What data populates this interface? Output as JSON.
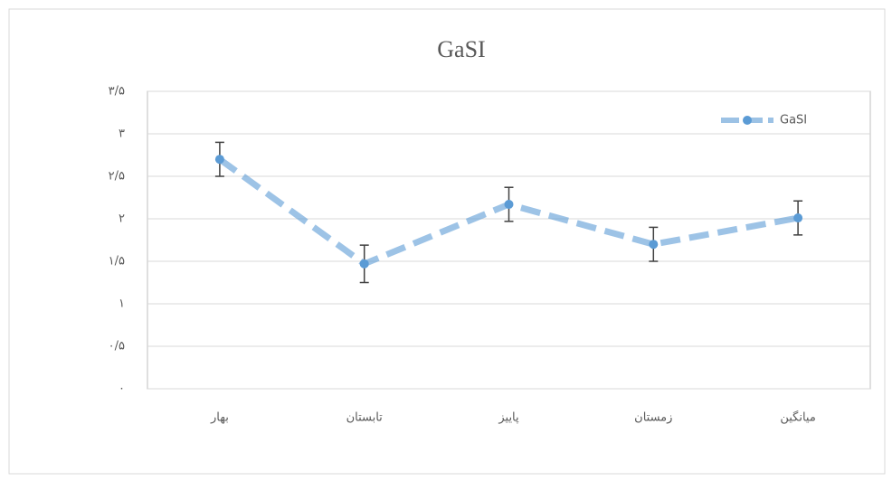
{
  "chart_data": {
    "type": "line",
    "title": "GaSI",
    "categories": [
      "بهار",
      "تابستان",
      "پاییز",
      "زمستان",
      "میانگین"
    ],
    "series": [
      {
        "name": "GaSI",
        "color": "#5b9bd5",
        "values": [
          2.7,
          1.47,
          2.17,
          1.7,
          2.01
        ],
        "errors": [
          0.2,
          0.22,
          0.2,
          0.2,
          0.2
        ]
      }
    ],
    "ylim": [
      0,
      3.5
    ],
    "yticks": [
      {
        "value": 0,
        "label": "۰"
      },
      {
        "value": 0.5,
        "label": "۰/۵"
      },
      {
        "value": 1,
        "label": "۱"
      },
      {
        "value": 1.5,
        "label": "۱/۵"
      },
      {
        "value": 2,
        "label": "۲"
      },
      {
        "value": 2.5,
        "label": "۲/۵"
      },
      {
        "value": 3,
        "label": "۳"
      },
      {
        "value": 3.5,
        "label": "۳/۵"
      }
    ],
    "grid": true,
    "legend": "top-right"
  }
}
